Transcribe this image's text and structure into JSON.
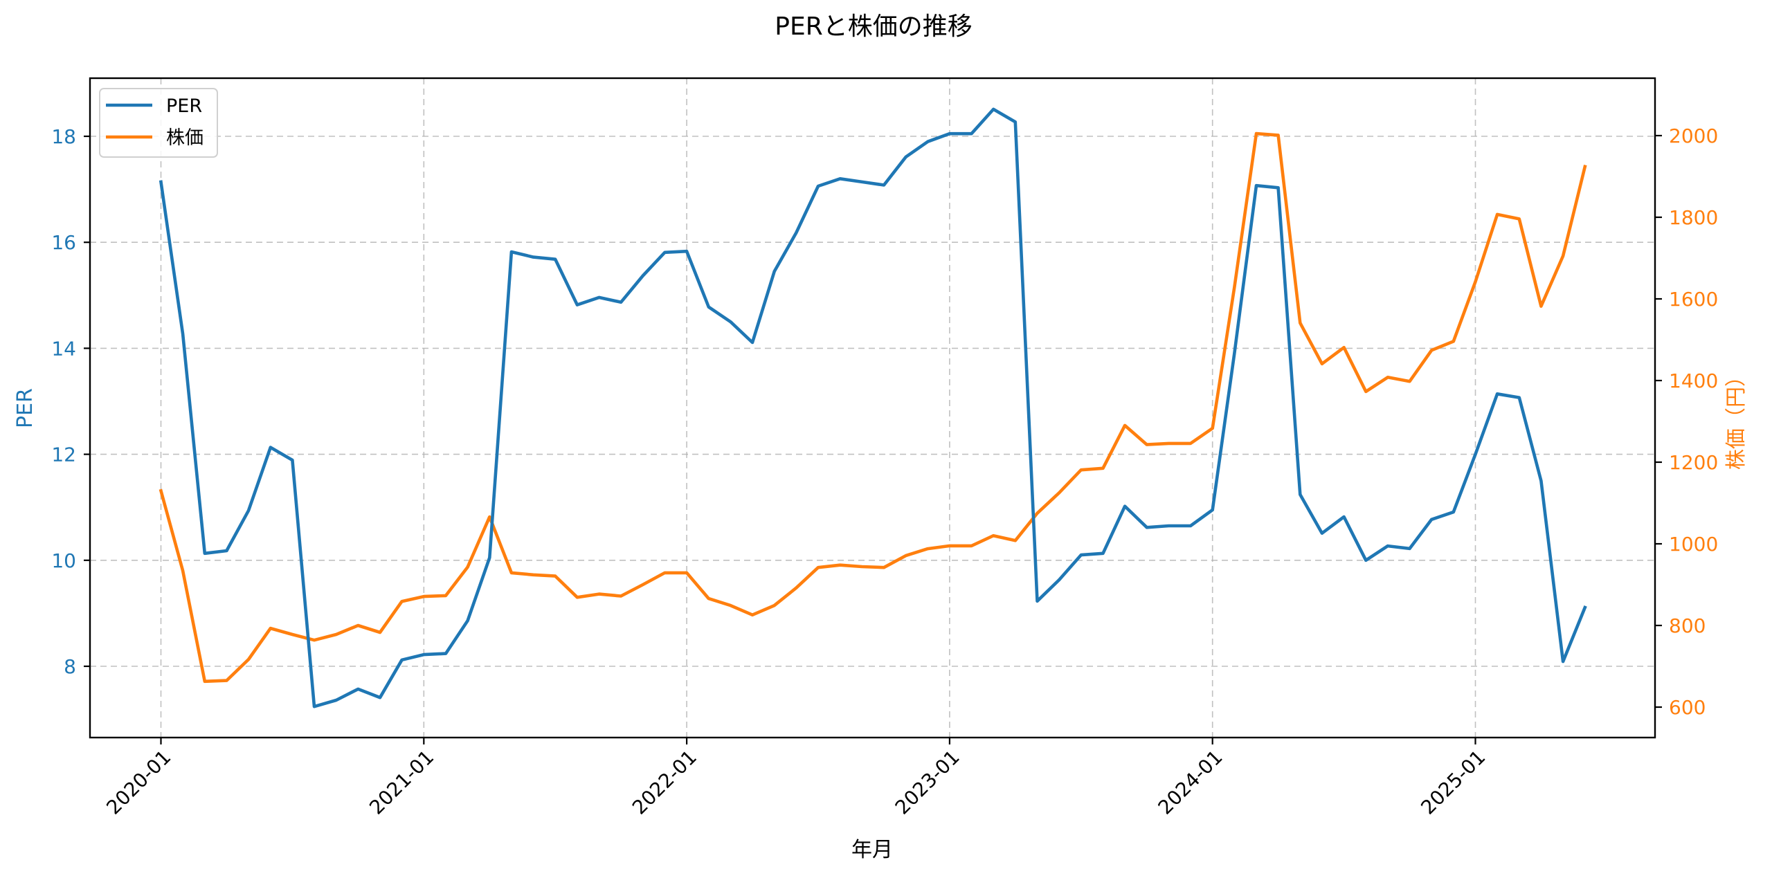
{
  "chart_data": {
    "type": "line",
    "title": "PERと株価の推移",
    "xlabel": "年月",
    "ylabel_left": "PER",
    "ylabel_right": "株価（円）",
    "legend": {
      "position": "upper left",
      "entries": [
        "PER",
        "株価"
      ]
    },
    "grid": true,
    "x": [
      "2020-01",
      "2020-02",
      "2020-03",
      "2020-04",
      "2020-05",
      "2020-06",
      "2020-07",
      "2020-08",
      "2020-09",
      "2020-10",
      "2020-11",
      "2020-12",
      "2021-01",
      "2021-02",
      "2021-03",
      "2021-04",
      "2021-05",
      "2021-06",
      "2021-07",
      "2021-08",
      "2021-09",
      "2021-10",
      "2021-11",
      "2021-12",
      "2022-01",
      "2022-02",
      "2022-03",
      "2022-04",
      "2022-05",
      "2022-06",
      "2022-07",
      "2022-08",
      "2022-09",
      "2022-10",
      "2022-11",
      "2022-12",
      "2023-01",
      "2023-02",
      "2023-03",
      "2023-04",
      "2023-05",
      "2023-06",
      "2023-07",
      "2023-08",
      "2023-09",
      "2023-10",
      "2023-11",
      "2023-12",
      "2024-01",
      "2024-02",
      "2024-03",
      "2024-04",
      "2024-05",
      "2024-06",
      "2024-07",
      "2024-08",
      "2024-09",
      "2024-10",
      "2024-11",
      "2024-12",
      "2025-01",
      "2025-02",
      "2025-03",
      "2025-04",
      "2025-05",
      "2025-06"
    ],
    "x_ticks": [
      "2020-01",
      "2021-01",
      "2022-01",
      "2023-01",
      "2024-01",
      "2025-01"
    ],
    "series": [
      {
        "name": "PER",
        "axis": "left",
        "color": "#1f77b4",
        "values": [
          17.14,
          14.27,
          10.13,
          10.18,
          10.94,
          12.13,
          11.89,
          7.24,
          7.36,
          7.57,
          7.41,
          8.12,
          8.22,
          8.24,
          8.86,
          10.05,
          15.82,
          15.72,
          15.68,
          14.82,
          14.96,
          14.87,
          15.37,
          15.81,
          15.83,
          14.78,
          14.5,
          14.11,
          15.45,
          16.18,
          17.06,
          17.2,
          17.14,
          17.08,
          17.61,
          17.9,
          18.05,
          18.05,
          18.51,
          18.27,
          9.23,
          9.63,
          10.1,
          10.13,
          11.02,
          10.62,
          10.65,
          10.65,
          10.95,
          13.9,
          17.07,
          17.03,
          11.24,
          10.51,
          10.82,
          10.0,
          10.27,
          10.22,
          10.77,
          10.91,
          12.0,
          13.14,
          13.07,
          11.5,
          8.09,
          9.11
        ]
      },
      {
        "name": "株価",
        "axis": "right",
        "color": "#ff7f0e",
        "values": [
          1130,
          934,
          663,
          665,
          717,
          793,
          778,
          764,
          778,
          800,
          783,
          859,
          871,
          873,
          943,
          1066,
          929,
          924,
          921,
          869,
          877,
          872,
          900,
          929,
          929,
          866,
          849,
          826,
          849,
          892,
          942,
          948,
          944,
          942,
          971,
          988,
          995,
          995,
          1020,
          1008,
          1075,
          1125,
          1181,
          1185,
          1290,
          1243,
          1246,
          1246,
          1283,
          1628,
          2005,
          2001,
          1541,
          1441,
          1481,
          1373,
          1408,
          1398,
          1474,
          1496,
          1642,
          1807,
          1796,
          1582,
          1705,
          1924
        ]
      }
    ],
    "y_left": {
      "ticks": [
        8,
        10,
        12,
        14,
        16,
        18
      ],
      "range": [
        6.72,
        19.17
      ]
    },
    "y_right": {
      "ticks": [
        600,
        800,
        1000,
        1200,
        1400,
        1600,
        1800,
        2000
      ],
      "range": [
        540,
        2137
      ]
    }
  }
}
